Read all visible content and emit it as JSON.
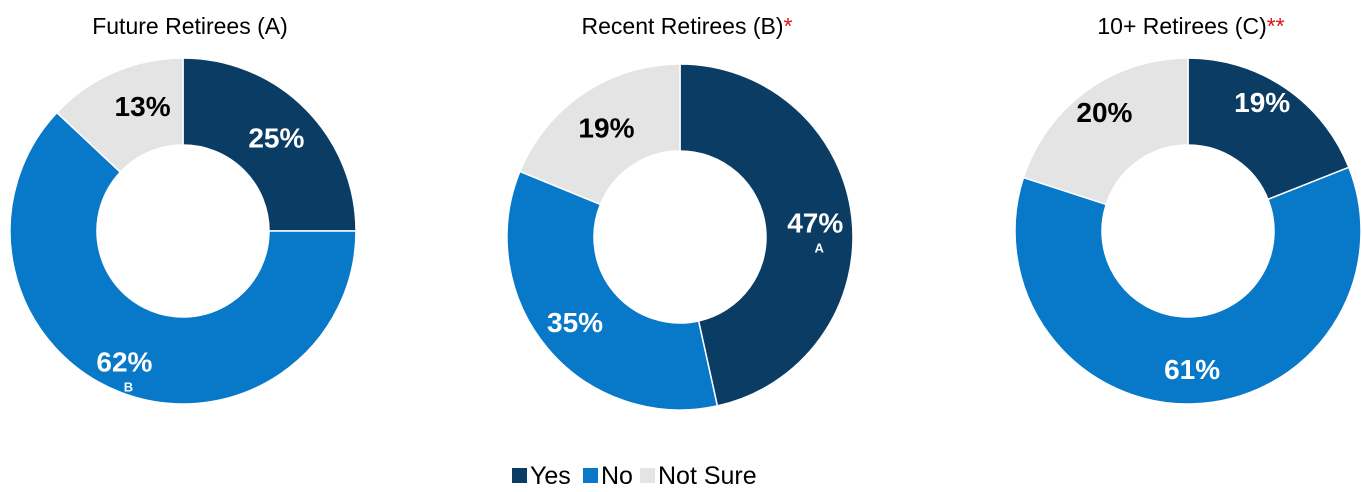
{
  "chart_data": [
    {
      "type": "pie",
      "title": "Future Retirees (A)",
      "title_mark": "",
      "slices": [
        {
          "label": "Yes",
          "value": 25,
          "text": "25%",
          "sig": ""
        },
        {
          "label": "No",
          "value": 62,
          "text": "62%",
          "sig": "B"
        },
        {
          "label": "Not Sure",
          "value": 13,
          "text": "13%",
          "sig": ""
        }
      ]
    },
    {
      "type": "pie",
      "title": "Recent Retirees (B)",
      "title_mark": "*",
      "slices": [
        {
          "label": "Yes",
          "value": 47,
          "text": "47%",
          "sig": "A"
        },
        {
          "label": "No",
          "value": 35,
          "text": "35%",
          "sig": ""
        },
        {
          "label": "Not Sure",
          "value": 19,
          "text": "19%",
          "sig": ""
        }
      ]
    },
    {
      "type": "pie",
      "title": "10+ Retirees (C)",
      "title_mark": "**",
      "slices": [
        {
          "label": "Yes",
          "value": 19,
          "text": "19%",
          "sig": ""
        },
        {
          "label": "No",
          "value": 61,
          "text": "61%",
          "sig": ""
        },
        {
          "label": "Not Sure",
          "value": 20,
          "text": "20%",
          "sig": ""
        }
      ]
    }
  ],
  "legend": [
    {
      "label": "Yes",
      "color": "#0b3c63"
    },
    {
      "label": "No",
      "color": "#0878c8"
    },
    {
      "label": "Not Sure",
      "color": "#e4e4e4"
    }
  ],
  "label_colors": {
    "Yes": "#ffffff",
    "No": "#ffffff",
    "Not Sure": "#000000"
  }
}
